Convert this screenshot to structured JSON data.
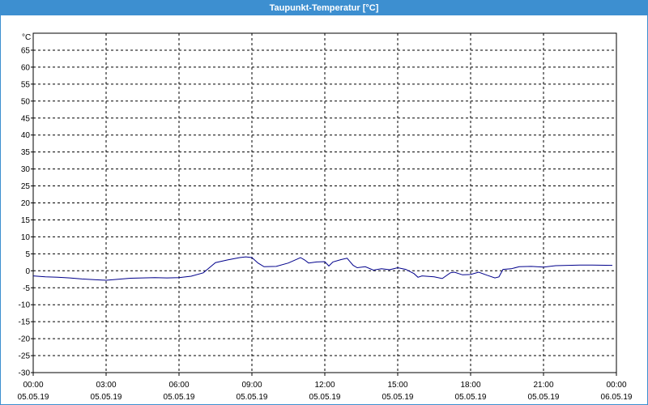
{
  "window": {
    "title": "Taupunkt-Temperatur [°C]"
  },
  "chart_data": {
    "type": "line",
    "title": "Taupunkt-Temperatur [°C]",
    "ylabel": "°C",
    "ylim": [
      -30,
      70
    ],
    "yticks": [
      -30,
      -25,
      -20,
      -15,
      -10,
      -5,
      0,
      5,
      10,
      15,
      20,
      25,
      30,
      35,
      40,
      45,
      50,
      55,
      60,
      65
    ],
    "xlim": [
      "2019-05-05 00:00",
      "2019-05-06 00:00"
    ],
    "xticks": [
      {
        "time": "00:00",
        "date": "05.05.19"
      },
      {
        "time": "03:00",
        "date": "05.05.19"
      },
      {
        "time": "06:00",
        "date": "05.05.19"
      },
      {
        "time": "09:00",
        "date": "05.05.19"
      },
      {
        "time": "12:00",
        "date": "05.05.19"
      },
      {
        "time": "15:00",
        "date": "05.05.19"
      },
      {
        "time": "18:00",
        "date": "05.05.19"
      },
      {
        "time": "21:00",
        "date": "05.05.19"
      },
      {
        "time": "00:00",
        "date": "06.05.19"
      }
    ],
    "grid": true,
    "line_color": "#00008b",
    "series": [
      {
        "x": [
          "2019-05-05 00:00",
          "2019-05-05 00:30",
          "2019-05-05 01:00",
          "2019-05-05 01:30",
          "2019-05-05 02:00",
          "2019-05-05 02:30",
          "2019-05-05 03:00",
          "2019-05-05 03:30",
          "2019-05-05 04:00",
          "2019-05-05 04:30",
          "2019-05-05 05:00",
          "2019-05-05 05:30",
          "2019-05-05 06:00",
          "2019-05-05 06:30",
          "2019-05-05 07:00",
          "2019-05-05 07:15",
          "2019-05-05 07:30",
          "2019-05-05 08:00",
          "2019-05-05 08:30",
          "2019-05-05 08:45",
          "2019-05-05 09:00",
          "2019-05-05 09:15",
          "2019-05-05 09:30",
          "2019-05-05 10:00",
          "2019-05-05 10:30",
          "2019-05-05 11:00",
          "2019-05-05 11:10",
          "2019-05-05 11:20",
          "2019-05-05 11:40",
          "2019-05-05 12:00",
          "2019-05-05 12:10",
          "2019-05-05 12:20",
          "2019-05-05 12:40",
          "2019-05-05 12:55",
          "2019-05-05 13:10",
          "2019-05-05 13:20",
          "2019-05-05 13:40",
          "2019-05-05 14:00",
          "2019-05-05 14:20",
          "2019-05-05 14:40",
          "2019-05-05 15:00",
          "2019-05-05 15:20",
          "2019-05-05 15:40",
          "2019-05-05 15:50",
          "2019-05-05 16:00",
          "2019-05-05 16:30",
          "2019-05-05 16:50",
          "2019-05-05 17:10",
          "2019-05-05 17:20",
          "2019-05-05 17:40",
          "2019-05-05 18:00",
          "2019-05-05 18:20",
          "2019-05-05 18:40",
          "2019-05-05 19:00",
          "2019-05-05 19:10",
          "2019-05-05 19:20",
          "2019-05-05 19:40",
          "2019-05-05 20:00",
          "2019-05-05 20:30",
          "2019-05-05 21:00",
          "2019-05-05 21:30",
          "2019-05-05 22:00",
          "2019-05-05 22:30",
          "2019-05-05 23:00",
          "2019-05-05 23:50"
        ],
        "y": [
          -1.5,
          -1.8,
          -1.9,
          -2.1,
          -2.4,
          -2.6,
          -2.8,
          -2.5,
          -2.2,
          -2.1,
          -2.0,
          -2.1,
          -2.0,
          -1.6,
          -0.6,
          0.9,
          2.4,
          3.2,
          3.9,
          4.1,
          3.9,
          2.3,
          1.2,
          1.3,
          2.3,
          3.9,
          3.2,
          2.3,
          2.6,
          2.7,
          1.4,
          2.6,
          3.3,
          3.7,
          1.6,
          0.9,
          1.2,
          0.2,
          0.6,
          0.3,
          0.9,
          0.4,
          -0.8,
          -1.9,
          -1.5,
          -1.8,
          -2.3,
          -0.6,
          -0.4,
          -1.2,
          -1.1,
          -0.4,
          -1.3,
          -2.1,
          -1.8,
          0.4,
          0.6,
          1.2,
          1.3,
          1.1,
          1.5,
          1.6,
          1.7,
          1.7,
          1.6
        ]
      }
    ]
  }
}
